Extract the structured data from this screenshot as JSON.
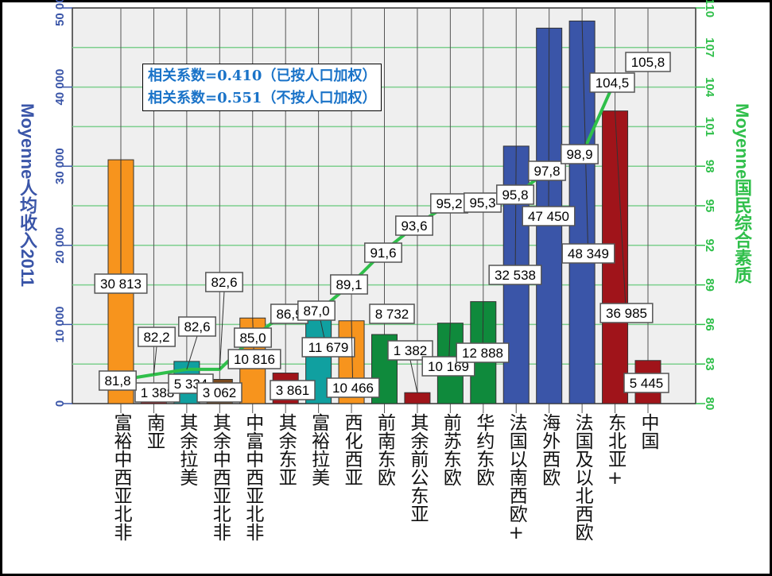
{
  "chart_data": {
    "type": "bar",
    "categories": [
      "富裕中西亚北非",
      "南亚",
      "其余拉美",
      "其余中西亚北非",
      "中富中西亚北非",
      "其余东亚",
      "富裕拉美",
      "西化西亚",
      "前南东欧",
      "其余前公东亚",
      "前苏东欧",
      "华约东欧",
      "法国以南西欧+",
      "海外西欧",
      "法国及以北西欧",
      "东北亚+",
      "中国"
    ],
    "series": [
      {
        "name": "Moyenne人均收入2011",
        "type": "bar",
        "axis": "left",
        "values": [
          30813,
          1388,
          5334,
          3062,
          10816,
          3861,
          11679,
          10466,
          8732,
          1382,
          10169,
          12888,
          32538,
          47450,
          48349,
          36985,
          5445
        ],
        "value_labels": [
          "30 813",
          "1 388",
          "5 334",
          "3 062",
          "10 816",
          "3 861",
          "11 679",
          "10 466",
          "8 732",
          "1 382",
          "10 169",
          "12 888",
          "32 538",
          "47 450",
          "48 349",
          "36 985",
          "5 445"
        ],
        "colors": [
          "#f7941d",
          "#a0141a",
          "#10a0a0",
          "#7a4a1e",
          "#f7941d",
          "#a0141a",
          "#10a0a0",
          "#f7941d",
          "#0f8a3c",
          "#a0141a",
          "#0f8a3c",
          "#0f8a3c",
          "#3a55a8",
          "#3a55a8",
          "#3a55a8",
          "#a0141a",
          "#a0141a"
        ]
      },
      {
        "name": "Moyenne国民综合素质",
        "type": "line",
        "axis": "right",
        "color": "#2fbf4a",
        "values": [
          81.8,
          82.2,
          82.6,
          82.6,
          85.0,
          86.9,
          87.0,
          89.1,
          91.6,
          93.6,
          95.2,
          95.3,
          95.8,
          97.8,
          98.9,
          104.5,
          105.8
        ],
        "value_labels": [
          "81,8",
          "82,2",
          "82,6",
          "82,6",
          "85,0",
          "86,9",
          "87,0",
          "89,1",
          "91,6",
          "93,6",
          "95,2",
          "95,3",
          "95,8",
          "97,8",
          "98,9",
          "104,5",
          "105,8"
        ]
      }
    ],
    "ylabel_left": "Moyenne人均收入2011",
    "ylabel_right": "Moyenne国民综合素质",
    "ylim_left": [
      0,
      50000
    ],
    "ylim_right": [
      80,
      110
    ],
    "yticks_left": [
      "0",
      "10 000",
      "20 000",
      "30 000",
      "40 000",
      "50 000"
    ],
    "yticks_right": [
      "80",
      "83",
      "86",
      "89",
      "92",
      "95",
      "98",
      "101",
      "104",
      "107",
      "110"
    ],
    "grid": true,
    "annotations": [
      "相关系数=0.410（已按人口加权）",
      "相关系数=0.551（不按人口加权）"
    ]
  }
}
